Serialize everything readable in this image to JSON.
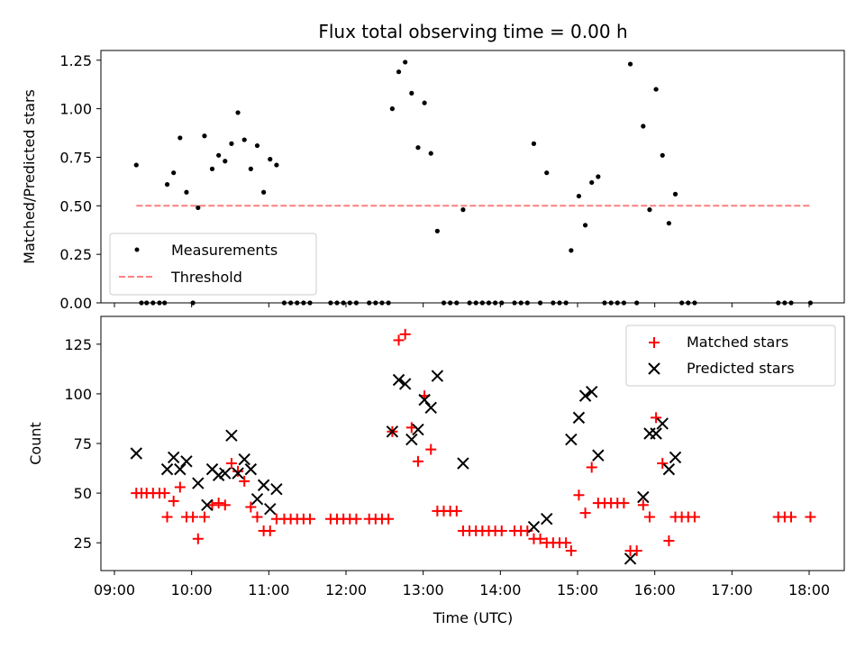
{
  "chart_data": [
    {
      "type": "scatter",
      "title": "Flux total observing time = 0.00 h",
      "xlabel": "",
      "ylabel": "Matched/Predicted stars",
      "x_unit": "time (UTC)",
      "xlim": [
        "09:00",
        "18:30"
      ],
      "ylim": [
        0,
        1.3
      ],
      "yticks": [
        "0.00",
        "0.25",
        "0.50",
        "0.75",
        "1.00",
        "1.25"
      ],
      "legend_position": "lower-left",
      "series": [
        {
          "name": "Measurements",
          "marker": "dot",
          "color": "#000000",
          "points": [
            [
              "09:17",
              0.71
            ],
            [
              "09:21",
              0.0
            ],
            [
              "09:25",
              0.0
            ],
            [
              "09:30",
              0.0
            ],
            [
              "09:35",
              0.0
            ],
            [
              "09:39",
              0.0
            ],
            [
              "09:41",
              0.61
            ],
            [
              "09:46",
              0.67
            ],
            [
              "09:51",
              0.85
            ],
            [
              "09:56",
              0.57
            ],
            [
              "10:01",
              0.0
            ],
            [
              "10:05",
              0.49
            ],
            [
              "10:10",
              0.86
            ],
            [
              "10:16",
              0.69
            ],
            [
              "10:21",
              0.76
            ],
            [
              "10:26",
              0.73
            ],
            [
              "10:31",
              0.82
            ],
            [
              "10:36",
              0.98
            ],
            [
              "10:41",
              0.84
            ],
            [
              "10:46",
              0.69
            ],
            [
              "10:51",
              0.81
            ],
            [
              "10:56",
              0.57
            ],
            [
              "11:01",
              0.74
            ],
            [
              "11:06",
              0.71
            ],
            [
              "11:12",
              0.0
            ],
            [
              "11:17",
              0.0
            ],
            [
              "11:22",
              0.0
            ],
            [
              "11:27",
              0.0
            ],
            [
              "11:32",
              0.0
            ],
            [
              "11:48",
              0.0
            ],
            [
              "11:53",
              0.0
            ],
            [
              "11:58",
              0.0
            ],
            [
              "12:03",
              0.0
            ],
            [
              "12:08",
              0.0
            ],
            [
              "12:18",
              0.0
            ],
            [
              "12:23",
              0.0
            ],
            [
              "12:28",
              0.0
            ],
            [
              "12:33",
              0.0
            ],
            [
              "12:36",
              1.0
            ],
            [
              "12:41",
              1.19
            ],
            [
              "12:46",
              1.24
            ],
            [
              "12:51",
              1.08
            ],
            [
              "12:56",
              0.8
            ],
            [
              "13:01",
              1.03
            ],
            [
              "13:06",
              0.77
            ],
            [
              "13:11",
              0.37
            ],
            [
              "13:16",
              0.0
            ],
            [
              "13:21",
              0.0
            ],
            [
              "13:26",
              0.0
            ],
            [
              "13:31",
              0.48
            ],
            [
              "13:36",
              0.0
            ],
            [
              "13:41",
              0.0
            ],
            [
              "13:46",
              0.0
            ],
            [
              "13:51",
              0.0
            ],
            [
              "13:56",
              0.0
            ],
            [
              "14:01",
              0.0
            ],
            [
              "14:11",
              0.0
            ],
            [
              "14:16",
              0.0
            ],
            [
              "14:21",
              0.0
            ],
            [
              "14:26",
              0.82
            ],
            [
              "14:31",
              0.0
            ],
            [
              "14:36",
              0.67
            ],
            [
              "14:41",
              0.0
            ],
            [
              "14:46",
              0.0
            ],
            [
              "14:51",
              0.0
            ],
            [
              "14:55",
              0.27
            ],
            [
              "15:01",
              0.55
            ],
            [
              "15:06",
              0.4
            ],
            [
              "15:11",
              0.62
            ],
            [
              "15:16",
              0.65
            ],
            [
              "15:21",
              0.0
            ],
            [
              "15:26",
              0.0
            ],
            [
              "15:31",
              0.0
            ],
            [
              "15:36",
              0.0
            ],
            [
              "15:41",
              1.23
            ],
            [
              "15:46",
              0.0
            ],
            [
              "15:51",
              0.91
            ],
            [
              "15:56",
              0.48
            ],
            [
              "16:01",
              1.1
            ],
            [
              "16:06",
              0.76
            ],
            [
              "16:11",
              0.41
            ],
            [
              "16:16",
              0.56
            ],
            [
              "16:21",
              0.0
            ],
            [
              "16:26",
              0.0
            ],
            [
              "16:31",
              0.0
            ],
            [
              "17:36",
              0.0
            ],
            [
              "17:41",
              0.0
            ],
            [
              "17:46",
              0.0
            ],
            [
              "18:01",
              0.0
            ]
          ]
        },
        {
          "name": "Threshold",
          "marker": "dashed-line",
          "color": "#ff7f7f",
          "points": [
            [
              "09:17",
              0.5
            ],
            [
              "18:01",
              0.5
            ]
          ]
        }
      ]
    },
    {
      "type": "scatter",
      "title": "",
      "xlabel": "Time (UTC)",
      "ylabel": "Count",
      "xlim": [
        "09:00",
        "18:30"
      ],
      "ylim": [
        11,
        139
      ],
      "xticks": [
        "09:00",
        "10:00",
        "11:00",
        "12:00",
        "13:00",
        "14:00",
        "15:00",
        "16:00",
        "17:00",
        "18:00"
      ],
      "yticks": [
        "25",
        "50",
        "75",
        "100",
        "125"
      ],
      "legend_position": "upper-right",
      "series": [
        {
          "name": "Matched stars",
          "marker": "plus",
          "color": "#ff0000",
          "points": [
            [
              "09:17",
              50
            ],
            [
              "09:21",
              50
            ],
            [
              "09:25",
              50
            ],
            [
              "09:30",
              50
            ],
            [
              "09:35",
              50
            ],
            [
              "09:39",
              50
            ],
            [
              "09:41",
              38
            ],
            [
              "09:46",
              46
            ],
            [
              "09:51",
              53
            ],
            [
              "09:56",
              38
            ],
            [
              "10:01",
              38
            ],
            [
              "10:05",
              27
            ],
            [
              "10:10",
              38
            ],
            [
              "10:16",
              44
            ],
            [
              "10:21",
              45
            ],
            [
              "10:26",
              44
            ],
            [
              "10:31",
              65
            ],
            [
              "10:36",
              61
            ],
            [
              "10:41",
              56
            ],
            [
              "10:46",
              43
            ],
            [
              "10:51",
              38
            ],
            [
              "10:56",
              31
            ],
            [
              "11:01",
              31
            ],
            [
              "11:06",
              37
            ],
            [
              "11:12",
              37
            ],
            [
              "11:17",
              37
            ],
            [
              "11:22",
              37
            ],
            [
              "11:27",
              37
            ],
            [
              "11:32",
              37
            ],
            [
              "11:48",
              37
            ],
            [
              "11:53",
              37
            ],
            [
              "11:58",
              37
            ],
            [
              "12:03",
              37
            ],
            [
              "12:08",
              37
            ],
            [
              "12:18",
              37
            ],
            [
              "12:23",
              37
            ],
            [
              "12:28",
              37
            ],
            [
              "12:33",
              37
            ],
            [
              "12:36",
              81
            ],
            [
              "12:41",
              127
            ],
            [
              "12:46",
              130
            ],
            [
              "12:51",
              83
            ],
            [
              "12:56",
              66
            ],
            [
              "13:01",
              99
            ],
            [
              "13:06",
              72
            ],
            [
              "13:11",
              41
            ],
            [
              "13:16",
              41
            ],
            [
              "13:21",
              41
            ],
            [
              "13:26",
              41
            ],
            [
              "13:31",
              31
            ],
            [
              "13:36",
              31
            ],
            [
              "13:41",
              31
            ],
            [
              "13:46",
              31
            ],
            [
              "13:51",
              31
            ],
            [
              "13:56",
              31
            ],
            [
              "14:01",
              31
            ],
            [
              "14:11",
              31
            ],
            [
              "14:16",
              31
            ],
            [
              "14:21",
              31
            ],
            [
              "14:26",
              27
            ],
            [
              "14:31",
              27
            ],
            [
              "14:36",
              25
            ],
            [
              "14:41",
              25
            ],
            [
              "14:46",
              25
            ],
            [
              "14:51",
              25
            ],
            [
              "14:55",
              21
            ],
            [
              "15:01",
              49
            ],
            [
              "15:06",
              40
            ],
            [
              "15:11",
              63
            ],
            [
              "15:16",
              45
            ],
            [
              "15:21",
              45
            ],
            [
              "15:26",
              45
            ],
            [
              "15:31",
              45
            ],
            [
              "15:36",
              45
            ],
            [
              "15:41",
              21
            ],
            [
              "15:46",
              21
            ],
            [
              "15:51",
              44
            ],
            [
              "15:56",
              38
            ],
            [
              "16:01",
              88
            ],
            [
              "16:06",
              65
            ],
            [
              "16:11",
              26
            ],
            [
              "16:16",
              38
            ],
            [
              "16:21",
              38
            ],
            [
              "16:26",
              38
            ],
            [
              "16:31",
              38
            ],
            [
              "17:36",
              38
            ],
            [
              "17:41",
              38
            ],
            [
              "17:46",
              38
            ],
            [
              "18:01",
              38
            ]
          ]
        },
        {
          "name": "Predicted stars",
          "marker": "x",
          "color": "#000000",
          "points": [
            [
              "09:17",
              70
            ],
            [
              "09:41",
              62
            ],
            [
              "09:46",
              68
            ],
            [
              "09:51",
              62
            ],
            [
              "09:56",
              66
            ],
            [
              "10:05",
              55
            ],
            [
              "10:12",
              44
            ],
            [
              "10:16",
              62
            ],
            [
              "10:21",
              59
            ],
            [
              "10:26",
              60
            ],
            [
              "10:31",
              79
            ],
            [
              "10:36",
              60
            ],
            [
              "10:41",
              67
            ],
            [
              "10:46",
              62
            ],
            [
              "10:51",
              47
            ],
            [
              "10:56",
              54
            ],
            [
              "11:01",
              42
            ],
            [
              "11:06",
              52
            ],
            [
              "12:36",
              81
            ],
            [
              "12:41",
              107
            ],
            [
              "12:46",
              105
            ],
            [
              "12:51",
              77
            ],
            [
              "12:56",
              82
            ],
            [
              "13:01",
              97
            ],
            [
              "13:06",
              93
            ],
            [
              "13:11",
              109
            ],
            [
              "13:31",
              65
            ],
            [
              "14:26",
              33
            ],
            [
              "14:36",
              37
            ],
            [
              "14:55",
              77
            ],
            [
              "15:01",
              88
            ],
            [
              "15:06",
              99
            ],
            [
              "15:11",
              101
            ],
            [
              "15:16",
              69
            ],
            [
              "15:41",
              17
            ],
            [
              "15:51",
              48
            ],
            [
              "15:56",
              80
            ],
            [
              "16:01",
              80
            ],
            [
              "16:06",
              85
            ],
            [
              "16:11",
              62
            ],
            [
              "16:16",
              68
            ]
          ]
        }
      ]
    }
  ]
}
